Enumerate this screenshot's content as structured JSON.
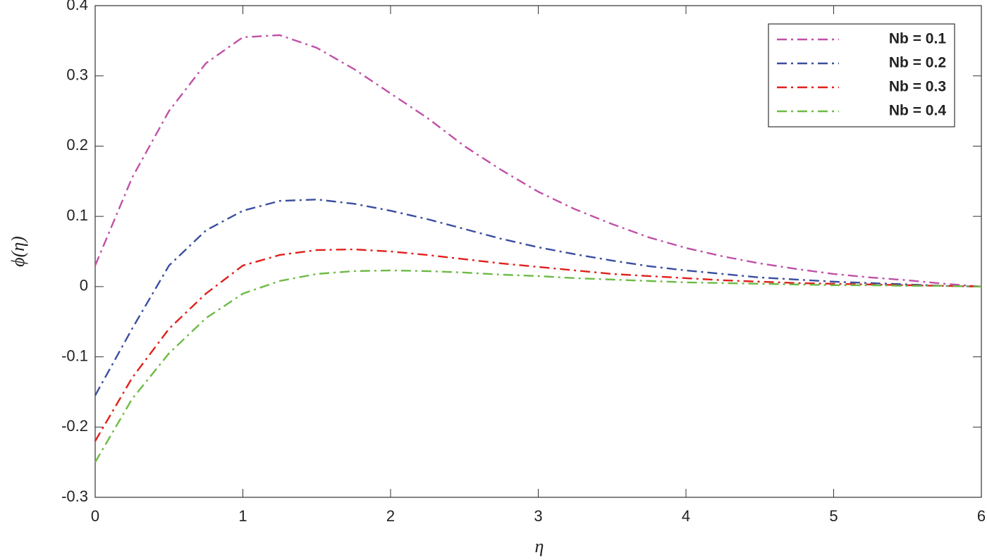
{
  "chart_data": {
    "type": "line",
    "x_label": "η",
    "y_label": "ϕ(η)",
    "x": [
      0,
      0.25,
      0.5,
      0.75,
      1,
      1.25,
      1.5,
      1.75,
      2,
      2.25,
      2.5,
      2.75,
      3,
      3.25,
      3.5,
      3.75,
      4,
      4.25,
      4.5,
      4.75,
      5,
      5.25,
      5.5,
      5.75,
      6
    ],
    "series": [
      {
        "name": "Nb = 0.1",
        "color": "#c050a8",
        "values": [
          0.03,
          0.155,
          0.25,
          0.318,
          0.355,
          0.358,
          0.34,
          0.31,
          0.275,
          0.24,
          0.2,
          0.166,
          0.135,
          0.11,
          0.089,
          0.07,
          0.055,
          0.043,
          0.033,
          0.025,
          0.018,
          0.013,
          0.009,
          0.004,
          0
        ]
      },
      {
        "name": "Nb = 0.2",
        "color": "#3a4ea0",
        "values": [
          -0.155,
          -0.06,
          0.03,
          0.08,
          0.108,
          0.122,
          0.124,
          0.118,
          0.108,
          0.096,
          0.082,
          0.068,
          0.056,
          0.046,
          0.037,
          0.029,
          0.023,
          0.018,
          0.013,
          0.01,
          0.007,
          0.005,
          0.003,
          0.001,
          0
        ]
      },
      {
        "name": "Nb = 0.3",
        "color": "#e0201b",
        "values": [
          -0.22,
          -0.13,
          -0.06,
          -0.01,
          0.03,
          0.045,
          0.052,
          0.053,
          0.05,
          0.045,
          0.039,
          0.033,
          0.028,
          0.023,
          0.018,
          0.015,
          0.012,
          0.009,
          0.007,
          0.005,
          0.004,
          0.003,
          0.002,
          0.001,
          0
        ]
      },
      {
        "name": "Nb = 0.4",
        "color": "#6cbb45",
        "values": [
          -0.25,
          -0.16,
          -0.095,
          -0.045,
          -0.01,
          0.008,
          0.018,
          0.022,
          0.023,
          0.022,
          0.02,
          0.017,
          0.015,
          0.012,
          0.01,
          0.008,
          0.006,
          0.005,
          0.004,
          0.003,
          0.002,
          0.002,
          0.001,
          0.001,
          0
        ]
      }
    ],
    "xlim": [
      0,
      6
    ],
    "xticks": [
      0,
      1,
      2,
      3,
      4,
      5,
      6
    ],
    "ylim": [
      -0.3,
      0.4
    ],
    "yticks": [
      -0.3,
      -0.2,
      -0.1,
      0,
      0.1,
      0.2,
      0.3,
      0.4
    ],
    "legend": "top-right",
    "grid": false
  }
}
